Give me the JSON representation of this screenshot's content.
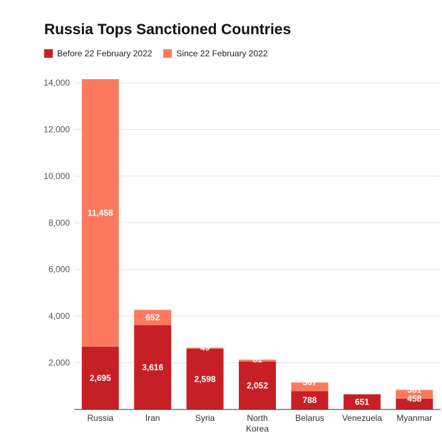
{
  "chart_data": {
    "type": "bar",
    "stacked": true,
    "title": "Russia Tops Sanctioned Countries",
    "categories": [
      "Russia",
      "Iran",
      "Syria",
      "North Korea",
      "Belarus",
      "Venezuela",
      "Myanmar"
    ],
    "series": [
      {
        "name": "Before 22 February 2022",
        "color": "#c62026",
        "values": [
          2695,
          3616,
          2598,
          2052,
          788,
          651,
          458
        ]
      },
      {
        "name": "Since 22 February 2022",
        "color": "#fb7a5e",
        "values": [
          11458,
          652,
          49,
          81,
          367,
          0,
          381
        ]
      }
    ],
    "data_labels": [
      [
        "2,695",
        "3,616",
        "2,598",
        "2,052",
        "788",
        "651",
        "458"
      ],
      [
        "11,458",
        "652",
        "49",
        "81",
        "367",
        "",
        "381"
      ]
    ],
    "y_ticks": [
      0,
      2000,
      4000,
      6000,
      8000,
      10000,
      12000,
      14000
    ],
    "y_tick_labels": [
      "",
      "2,000",
      "4,000",
      "6,000",
      "8,000",
      "10,000",
      "12,000",
      "14,000"
    ],
    "ylim": [
      0,
      14000
    ],
    "grid": true,
    "legend_position": "top-left"
  }
}
